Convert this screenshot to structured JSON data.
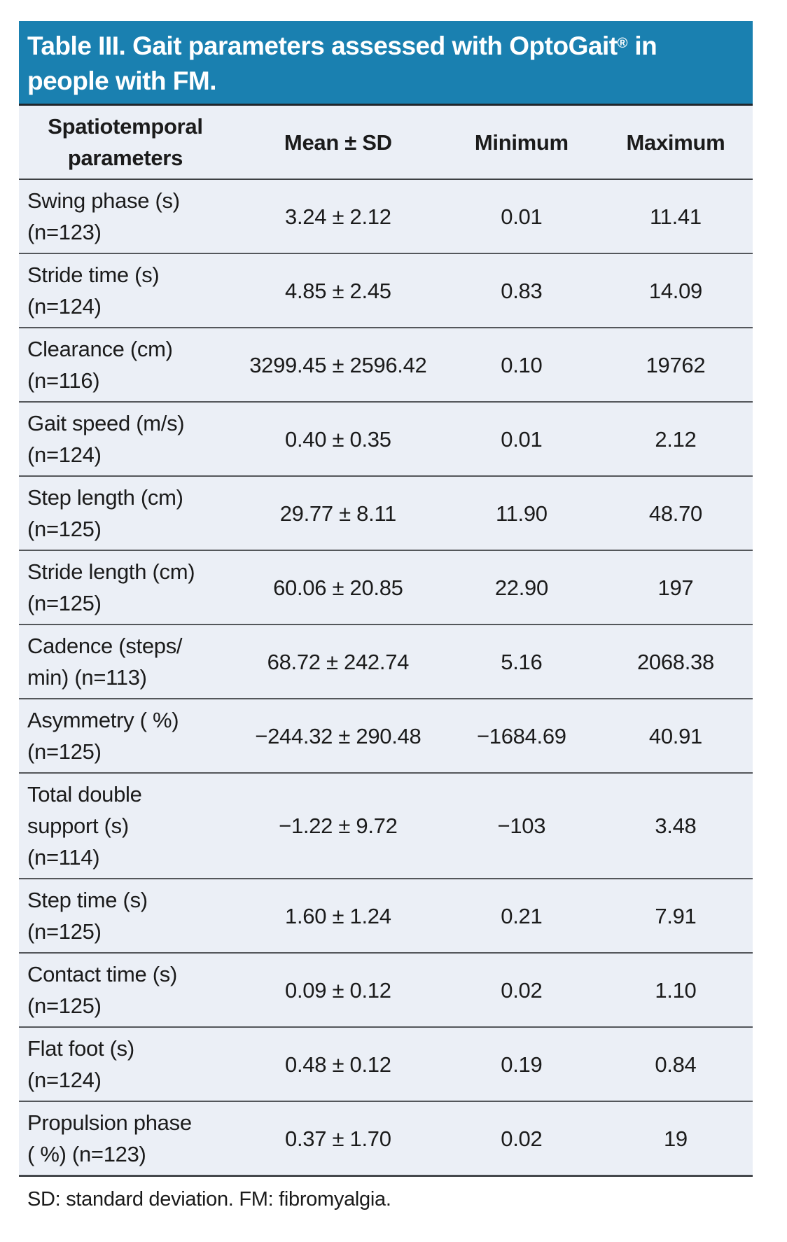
{
  "accent_color": "#1A80B0",
  "body_background": "#EBEFF6",
  "table": {
    "title": "Table III. Gait parameters assessed with OptoGait",
    "title_reg": "®",
    "title_rest": " in\npeople with FM.",
    "columns": [
      "Spatiotemporal\nparameters",
      "Mean ± SD",
      "Minimum",
      "Maximum"
    ],
    "rows": [
      {
        "parameter": "Swing phase (s)\n(n=123)",
        "mean_sd": "3.24 ± 2.12",
        "minimum": "0.01",
        "maximum": "11.41"
      },
      {
        "parameter": "Stride time (s)\n(n=124)",
        "mean_sd": "4.85 ± 2.45",
        "minimum": "0.83",
        "maximum": "14.09"
      },
      {
        "parameter": "Clearance (cm)\n(n=116)",
        "mean_sd": "3299.45 ± 2596.42",
        "minimum": "0.10",
        "maximum": "19762"
      },
      {
        "parameter": "Gait speed (m/s)\n(n=124)",
        "mean_sd": "0.40 ± 0.35",
        "minimum": "0.01",
        "maximum": "2.12"
      },
      {
        "parameter": "Step length (cm)\n(n=125)",
        "mean_sd": "29.77 ± 8.11",
        "minimum": "11.90",
        "maximum": "48.70"
      },
      {
        "parameter": "Stride length (cm)\n(n=125)",
        "mean_sd": "60.06 ± 20.85",
        "minimum": "22.90",
        "maximum": "197"
      },
      {
        "parameter": "Cadence (steps/\nmin) (n=113)",
        "mean_sd": "68.72 ± 242.74",
        "minimum": "5.16",
        "maximum": "2068.38"
      },
      {
        "parameter": "Asymmetry ( %)\n(n=125)",
        "mean_sd": "−244.32 ± 290.48",
        "minimum": "−1684.69",
        "maximum": "40.91"
      },
      {
        "parameter": "Total double\nsupport (s)\n(n=114)",
        "mean_sd": "−1.22 ± 9.72",
        "minimum": "−103",
        "maximum": "3.48"
      },
      {
        "parameter": "Step time (s)\n(n=125)",
        "mean_sd": "1.60 ± 1.24",
        "minimum": "0.21",
        "maximum": "7.91"
      },
      {
        "parameter": "Contact time (s)\n(n=125)",
        "mean_sd": "0.09 ± 0.12",
        "minimum": "0.02",
        "maximum": "1.10"
      },
      {
        "parameter": "Flat foot (s)\n(n=124)",
        "mean_sd": "0.48 ± 0.12",
        "minimum": "0.19",
        "maximum": "0.84"
      },
      {
        "parameter": "Propulsion phase\n( %) (n=123)",
        "mean_sd": "0.37 ± 1.70",
        "minimum": "0.02",
        "maximum": "19"
      }
    ],
    "footnote": "SD: standard deviation. FM: fibromyalgia."
  }
}
